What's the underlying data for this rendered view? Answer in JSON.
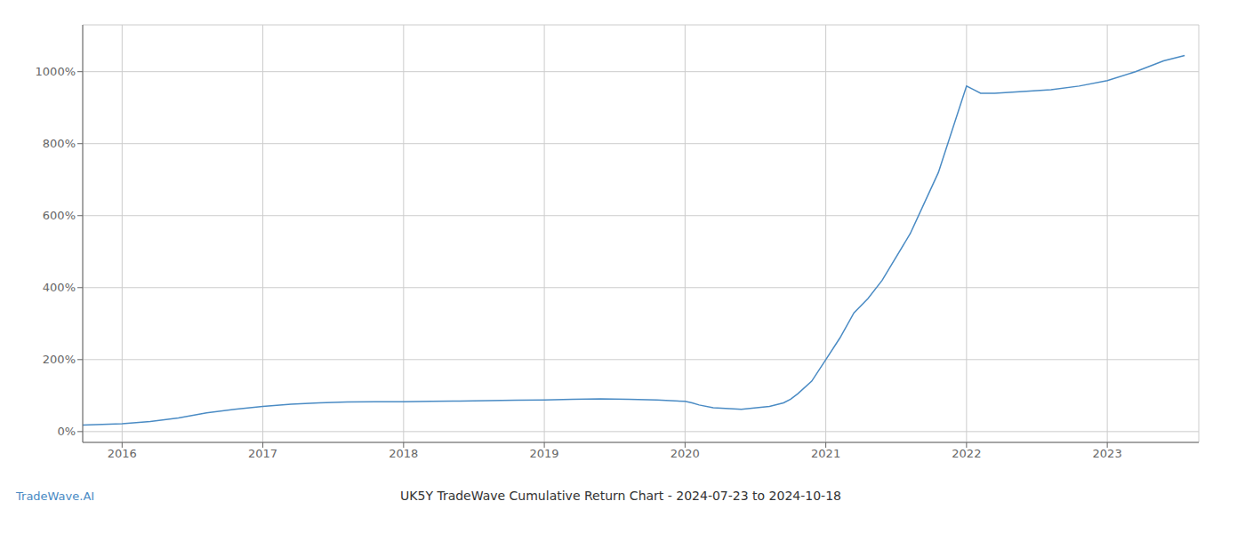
{
  "chart_data": {
    "type": "line",
    "title": "UK5Y TradeWave Cumulative Return Chart - 2024-07-23 to 2024-10-18",
    "annotations": [
      "TradeWave.AI"
    ],
    "color": "#4a8bc4",
    "grid": true,
    "x": [
      2015.72,
      2016.0,
      2016.2,
      2016.4,
      2016.6,
      2016.8,
      2017.0,
      2017.2,
      2017.4,
      2017.6,
      2017.8,
      2018.0,
      2018.2,
      2018.4,
      2018.6,
      2018.8,
      2019.0,
      2019.2,
      2019.4,
      2019.6,
      2019.8,
      2020.0,
      2020.05,
      2020.1,
      2020.2,
      2020.4,
      2020.6,
      2020.7,
      2020.75,
      2020.8,
      2020.9,
      2021.0,
      2021.1,
      2021.2,
      2021.3,
      2021.4,
      2021.6,
      2021.8,
      2022.0,
      2022.05,
      2022.1,
      2022.2,
      2022.4,
      2022.6,
      2022.8,
      2023.0,
      2023.2,
      2023.4,
      2023.55
    ],
    "values": [
      18,
      22,
      28,
      38,
      52,
      62,
      70,
      76,
      80,
      82,
      83,
      83,
      84,
      85,
      86,
      87,
      88,
      90,
      91,
      90,
      88,
      84,
      80,
      74,
      66,
      62,
      70,
      80,
      90,
      105,
      140,
      200,
      260,
      330,
      370,
      420,
      550,
      720,
      960,
      950,
      940,
      940,
      945,
      950,
      960,
      975,
      1000,
      1030,
      1045
    ],
    "xlim": [
      2015.72,
      2023.65
    ],
    "xticks": [
      2016,
      2017,
      2018,
      2019,
      2020,
      2021,
      2022,
      2023
    ],
    "ylim": [
      -30,
      1130
    ],
    "yticks": [
      {
        "value": 0,
        "label": "0%"
      },
      {
        "value": 200,
        "label": "200%"
      },
      {
        "value": 400,
        "label": "400%"
      },
      {
        "value": 600,
        "label": "600%"
      },
      {
        "value": 800,
        "label": "800%"
      },
      {
        "value": 1000,
        "label": "1000%"
      }
    ]
  }
}
